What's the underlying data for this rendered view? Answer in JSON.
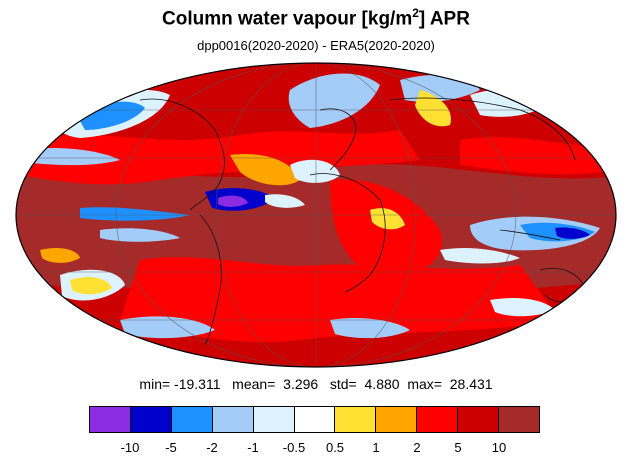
{
  "title": {
    "main": "Column water vapour [kg/m",
    "superscript": "2",
    "suffix": "] APR"
  },
  "subtitle": "dpp0016(2020-2020) - ERA5(2020-2020)",
  "stats": {
    "min_label": "min=",
    "min_value": "-19.311",
    "mean_label": "mean=",
    "mean_value": "3.296",
    "std_label": "std=",
    "std_value": "4.880",
    "max_label": "max=",
    "max_value": "28.431"
  },
  "colorbar": {
    "colors": [
      "#8b2be2",
      "#0000cd",
      "#1e90ff",
      "#a3cdf8",
      "#dcf3ff",
      "#ffffff",
      "#ffe033",
      "#ffa500",
      "#ff0000",
      "#cc0000",
      "#a52a2a"
    ],
    "labels": [
      "-10",
      "-5",
      "-2",
      "-1",
      "-0.5",
      "0.5",
      "1",
      "2",
      "5",
      "10"
    ]
  }
}
